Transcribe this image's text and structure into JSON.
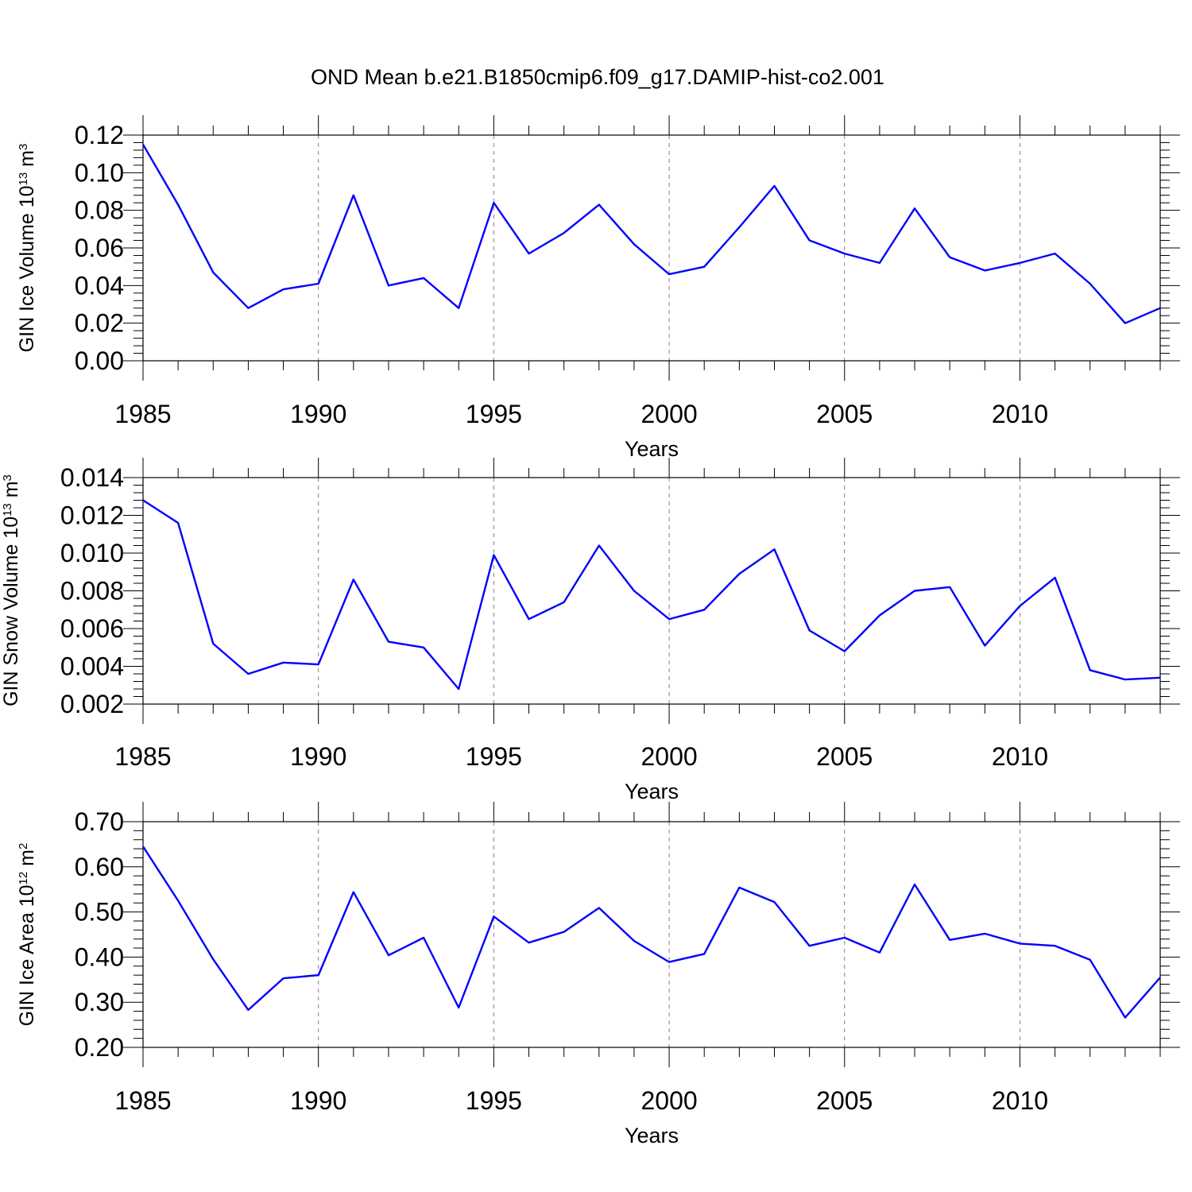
{
  "title": "OND Mean b.e21.B1850cmip6.f09_g17.DAMIP-hist-co2.001",
  "chart_data": [
    {
      "type": "line",
      "name": "ice-volume",
      "title": "",
      "xlabel": "Years",
      "ylabel": "GIN Ice Volume 10",
      "ylabel_exp": "13",
      "ylabel_unit": " m",
      "ylabel_unit_exp": "3",
      "xlim": [
        1985,
        2014
      ],
      "ylim": [
        0.0,
        0.12
      ],
      "xticks": [
        1985,
        1990,
        1995,
        2000,
        2005,
        2010
      ],
      "xtick_labels": [
        "1985",
        "1990",
        "1995",
        "2000",
        "2005",
        "2010"
      ],
      "yticks": [
        0.0,
        0.02,
        0.04,
        0.06,
        0.08,
        0.1,
        0.12
      ],
      "ytick_labels": [
        "0.00",
        "0.02",
        "0.04",
        "0.06",
        "0.08",
        "0.10",
        "0.12"
      ],
      "grid": "vertical dashed at major x ticks",
      "color": "#0000ff",
      "x": [
        1985,
        1986,
        1987,
        1988,
        1989,
        1990,
        1991,
        1992,
        1993,
        1994,
        1995,
        1996,
        1997,
        1998,
        1999,
        2000,
        2001,
        2002,
        2003,
        2004,
        2005,
        2006,
        2007,
        2008,
        2009,
        2010,
        2011,
        2012,
        2013,
        2014
      ],
      "values": [
        0.115,
        0.083,
        0.047,
        0.028,
        0.038,
        0.041,
        0.088,
        0.04,
        0.044,
        0.028,
        0.084,
        0.057,
        0.068,
        0.083,
        0.062,
        0.046,
        0.05,
        0.071,
        0.093,
        0.064,
        0.057,
        0.052,
        0.081,
        0.055,
        0.048,
        0.052,
        0.057,
        0.041,
        0.02,
        0.028
      ]
    },
    {
      "type": "line",
      "name": "snow-volume",
      "title": "",
      "xlabel": "Years",
      "ylabel": "GIN Snow Volume 10",
      "ylabel_exp": "13",
      "ylabel_unit": " m",
      "ylabel_unit_exp": "3",
      "xlim": [
        1985,
        2014
      ],
      "ylim": [
        0.002,
        0.014
      ],
      "xticks": [
        1985,
        1990,
        1995,
        2000,
        2005,
        2010
      ],
      "xtick_labels": [
        "1985",
        "1990",
        "1995",
        "2000",
        "2005",
        "2010"
      ],
      "yticks": [
        0.002,
        0.004,
        0.006,
        0.008,
        0.01,
        0.012,
        0.014
      ],
      "ytick_labels": [
        "0.002",
        "0.004",
        "0.006",
        "0.008",
        "0.010",
        "0.012",
        "0.014"
      ],
      "grid": "vertical dashed at major x ticks",
      "color": "#0000ff",
      "x": [
        1985,
        1986,
        1987,
        1988,
        1989,
        1990,
        1991,
        1992,
        1993,
        1994,
        1995,
        1996,
        1997,
        1998,
        1999,
        2000,
        2001,
        2002,
        2003,
        2004,
        2005,
        2006,
        2007,
        2008,
        2009,
        2010,
        2011,
        2012,
        2013,
        2014
      ],
      "values": [
        0.0128,
        0.0116,
        0.0052,
        0.0036,
        0.0042,
        0.0041,
        0.0086,
        0.0053,
        0.005,
        0.0028,
        0.0099,
        0.0065,
        0.0074,
        0.0104,
        0.008,
        0.0065,
        0.007,
        0.0089,
        0.0102,
        0.0059,
        0.0048,
        0.0067,
        0.008,
        0.0082,
        0.0051,
        0.0072,
        0.0087,
        0.0038,
        0.0033,
        0.0034
      ]
    },
    {
      "type": "line",
      "name": "ice-area",
      "title": "",
      "xlabel": "Years",
      "ylabel": "GIN Ice Area 10",
      "ylabel_exp": "12",
      "ylabel_unit": " m",
      "ylabel_unit_exp": "2",
      "xlim": [
        1985,
        2014
      ],
      "ylim": [
        0.2,
        0.7
      ],
      "xticks": [
        1985,
        1990,
        1995,
        2000,
        2005,
        2010
      ],
      "xtick_labels": [
        "1985",
        "1990",
        "1995",
        "2000",
        "2005",
        "2010"
      ],
      "yticks": [
        0.2,
        0.3,
        0.4,
        0.5,
        0.6,
        0.7
      ],
      "ytick_labels": [
        "0.20",
        "0.30",
        "0.40",
        "0.50",
        "0.60",
        "0.70"
      ],
      "grid": "vertical dashed at major x ticks",
      "color": "#0000ff",
      "x": [
        1985,
        1986,
        1987,
        1988,
        1989,
        1990,
        1991,
        1992,
        1993,
        1994,
        1995,
        1996,
        1997,
        1998,
        1999,
        2000,
        2001,
        2002,
        2003,
        2004,
        2005,
        2006,
        2007,
        2008,
        2009,
        2010,
        2011,
        2012,
        2013,
        2014
      ],
      "values": [
        0.645,
        0.525,
        0.395,
        0.283,
        0.353,
        0.36,
        0.544,
        0.404,
        0.443,
        0.288,
        0.49,
        0.432,
        0.456,
        0.509,
        0.436,
        0.389,
        0.407,
        0.554,
        0.522,
        0.425,
        0.443,
        0.41,
        0.561,
        0.438,
        0.452,
        0.43,
        0.425,
        0.394,
        0.266,
        0.355
      ]
    }
  ]
}
